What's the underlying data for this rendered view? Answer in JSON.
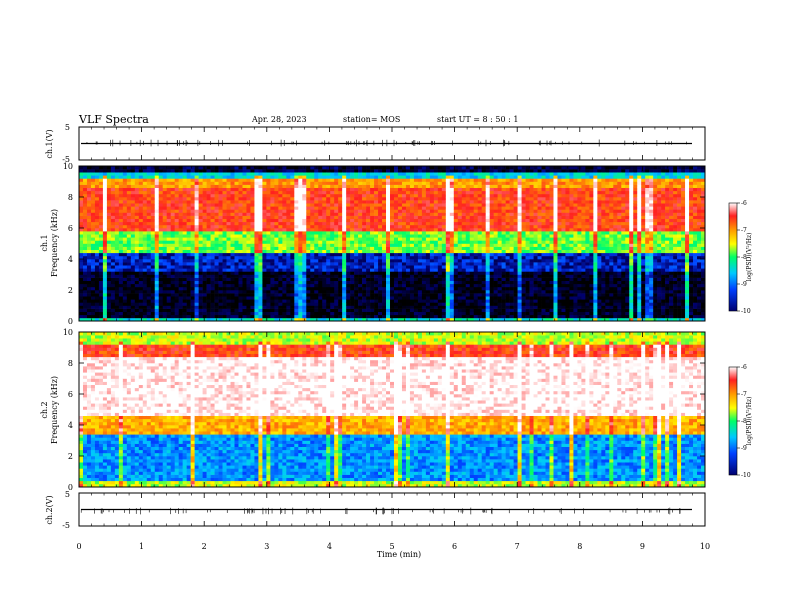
{
  "header": {
    "title": "VLF Spectra",
    "date": "Apr. 28, 2023",
    "station": "station= MOS",
    "start": "start  UT  =   8  : 50 : 1"
  },
  "chart_data": [
    {
      "type": "line",
      "ylabel": "ch.1(V)",
      "ylim": [
        -5,
        5
      ],
      "yticks": [
        "5",
        "-5"
      ],
      "x": [
        0,
        10
      ],
      "y": [
        0,
        0
      ]
    },
    {
      "type": "heatmap",
      "ylabel_top": "ch.1",
      "ylabel": "Frequency (kHz)",
      "ylim": [
        0,
        10
      ],
      "yticks": [
        "0",
        "2",
        "4",
        "6",
        "8",
        "10"
      ],
      "xlim": [
        0,
        10
      ],
      "colorbar": {
        "label": "log(PSD)(V²/Hz)",
        "range": [
          -10,
          -6
        ],
        "ticks": [
          "-6",
          "-7",
          "-8",
          "-9",
          "-10"
        ]
      },
      "bands_khz_logpsd": [
        {
          "from": 0,
          "to": 0.3,
          "level": -8.5
        },
        {
          "from": 0.3,
          "to": 3.2,
          "level": -9.9
        },
        {
          "from": 3.2,
          "to": 4.5,
          "level": -9.4
        },
        {
          "from": 4.5,
          "to": 5.8,
          "level": -8.0
        },
        {
          "from": 5.8,
          "to": 8.6,
          "level": -6.8
        },
        {
          "from": 8.6,
          "to": 9.3,
          "level": -7.2
        },
        {
          "from": 9.3,
          "to": 9.7,
          "level": -8.6
        },
        {
          "from": 9.7,
          "to": 10,
          "level": -9.8
        }
      ]
    },
    {
      "type": "heatmap",
      "ylabel_top": "ch.2",
      "ylabel": "Frequency (kHz)",
      "ylim": [
        0,
        10
      ],
      "yticks": [
        "0",
        "2",
        "4",
        "6",
        "8",
        "10"
      ],
      "xlim": [
        0,
        10
      ],
      "colorbar": {
        "label": "log(PSD)(V²/Hz)",
        "range": [
          -10,
          -6
        ],
        "ticks": [
          "-6",
          "-7",
          "-8",
          "-9",
          "-10"
        ]
      },
      "bands_khz_logpsd": [
        {
          "from": 0,
          "to": 0.4,
          "level": -7.8
        },
        {
          "from": 0.4,
          "to": 3.5,
          "level": -8.9
        },
        {
          "from": 3.5,
          "to": 4.6,
          "level": -7.3
        },
        {
          "from": 4.6,
          "to": 8.4,
          "level": -6.0
        },
        {
          "from": 8.4,
          "to": 9.2,
          "level": -6.8
        },
        {
          "from": 9.2,
          "to": 10,
          "level": -7.8
        }
      ]
    },
    {
      "type": "line",
      "ylabel": "ch.2(V)",
      "ylim": [
        -5,
        5
      ],
      "yticks": [
        "5",
        "-5"
      ],
      "x": [
        0,
        10
      ],
      "y": [
        0,
        0
      ]
    }
  ],
  "xaxis": {
    "label": "Time (min)",
    "ticks": [
      "0",
      "1",
      "2",
      "3",
      "4",
      "5",
      "6",
      "7",
      "8",
      "9",
      "10"
    ]
  },
  "colors": {
    "colormap": [
      "#ffffff",
      "#ff2020",
      "#ff9a00",
      "#ffff00",
      "#00ff66",
      "#00c8ff",
      "#0040ff",
      "#000070",
      "#000000"
    ]
  }
}
